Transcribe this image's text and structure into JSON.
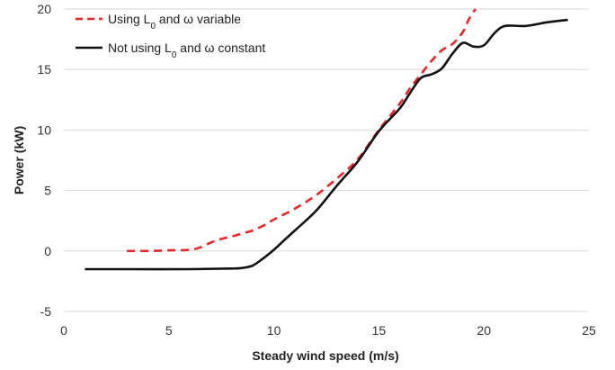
{
  "chart_data": {
    "type": "line",
    "title": "",
    "xlabel": "Steady wind speed (m/s)",
    "ylabel": "Power (kW)",
    "xlim": [
      0,
      25
    ],
    "ylim": [
      -5,
      20
    ],
    "xticks": [
      0,
      5,
      10,
      15,
      20,
      25
    ],
    "yticks": [
      -5,
      0,
      5,
      10,
      15,
      20
    ],
    "xtick_labels": [
      "0",
      "5",
      "10",
      "15",
      "20",
      "25"
    ],
    "ytick_labels": [
      "-5",
      "0",
      "5",
      "10",
      "15",
      "20"
    ],
    "grid": "horizontal",
    "legend_position": "top-left",
    "series": [
      {
        "name": "Using L0 and ω variable",
        "legend_parts": [
          "Using L",
          "0",
          " and ω variable"
        ],
        "color": "#e8262a",
        "dash": "dashed",
        "points": [
          [
            3,
            0
          ],
          [
            4,
            0
          ],
          [
            5,
            0.05
          ],
          [
            6,
            0.1
          ],
          [
            6.5,
            0.3
          ],
          [
            7,
            0.7
          ],
          [
            7.5,
            1.0
          ],
          [
            8,
            1.2
          ],
          [
            8.5,
            1.45
          ],
          [
            9,
            1.7
          ],
          [
            9.5,
            2.1
          ],
          [
            10,
            2.6
          ],
          [
            11,
            3.5
          ],
          [
            12,
            4.6
          ],
          [
            13,
            6.0
          ],
          [
            14,
            7.6
          ],
          [
            15,
            10.0
          ],
          [
            16,
            12.2
          ],
          [
            16.5,
            13.5
          ],
          [
            17,
            14.6
          ],
          [
            17.5,
            15.7
          ],
          [
            18,
            16.6
          ],
          [
            18.5,
            17.1
          ],
          [
            19,
            18.1
          ],
          [
            19.3,
            19.2
          ],
          [
            19.6,
            20
          ]
        ]
      },
      {
        "name": "Not using L0 and ω constant",
        "legend_parts": [
          "Not using L",
          "0",
          " and ω constant"
        ],
        "color": "#111111",
        "dash": "solid",
        "points": [
          [
            1,
            -1.5
          ],
          [
            3,
            -1.5
          ],
          [
            6,
            -1.5
          ],
          [
            8,
            -1.45
          ],
          [
            8.5,
            -1.4
          ],
          [
            9,
            -1.2
          ],
          [
            9.5,
            -0.6
          ],
          [
            10,
            0.1
          ],
          [
            10.5,
            0.9
          ],
          [
            11,
            1.7
          ],
          [
            12,
            3.3
          ],
          [
            13,
            5.4
          ],
          [
            14,
            7.4
          ],
          [
            15,
            9.9
          ],
          [
            16,
            11.8
          ],
          [
            16.5,
            13.1
          ],
          [
            17,
            14.3
          ],
          [
            17.5,
            14.6
          ],
          [
            18,
            15.1
          ],
          [
            18.5,
            16.3
          ],
          [
            19,
            17.2
          ],
          [
            19.5,
            16.9
          ],
          [
            20,
            17.0
          ],
          [
            20.5,
            18.0
          ],
          [
            21,
            18.6
          ],
          [
            22,
            18.6
          ],
          [
            23,
            18.9
          ],
          [
            24,
            19.1
          ]
        ]
      }
    ]
  }
}
